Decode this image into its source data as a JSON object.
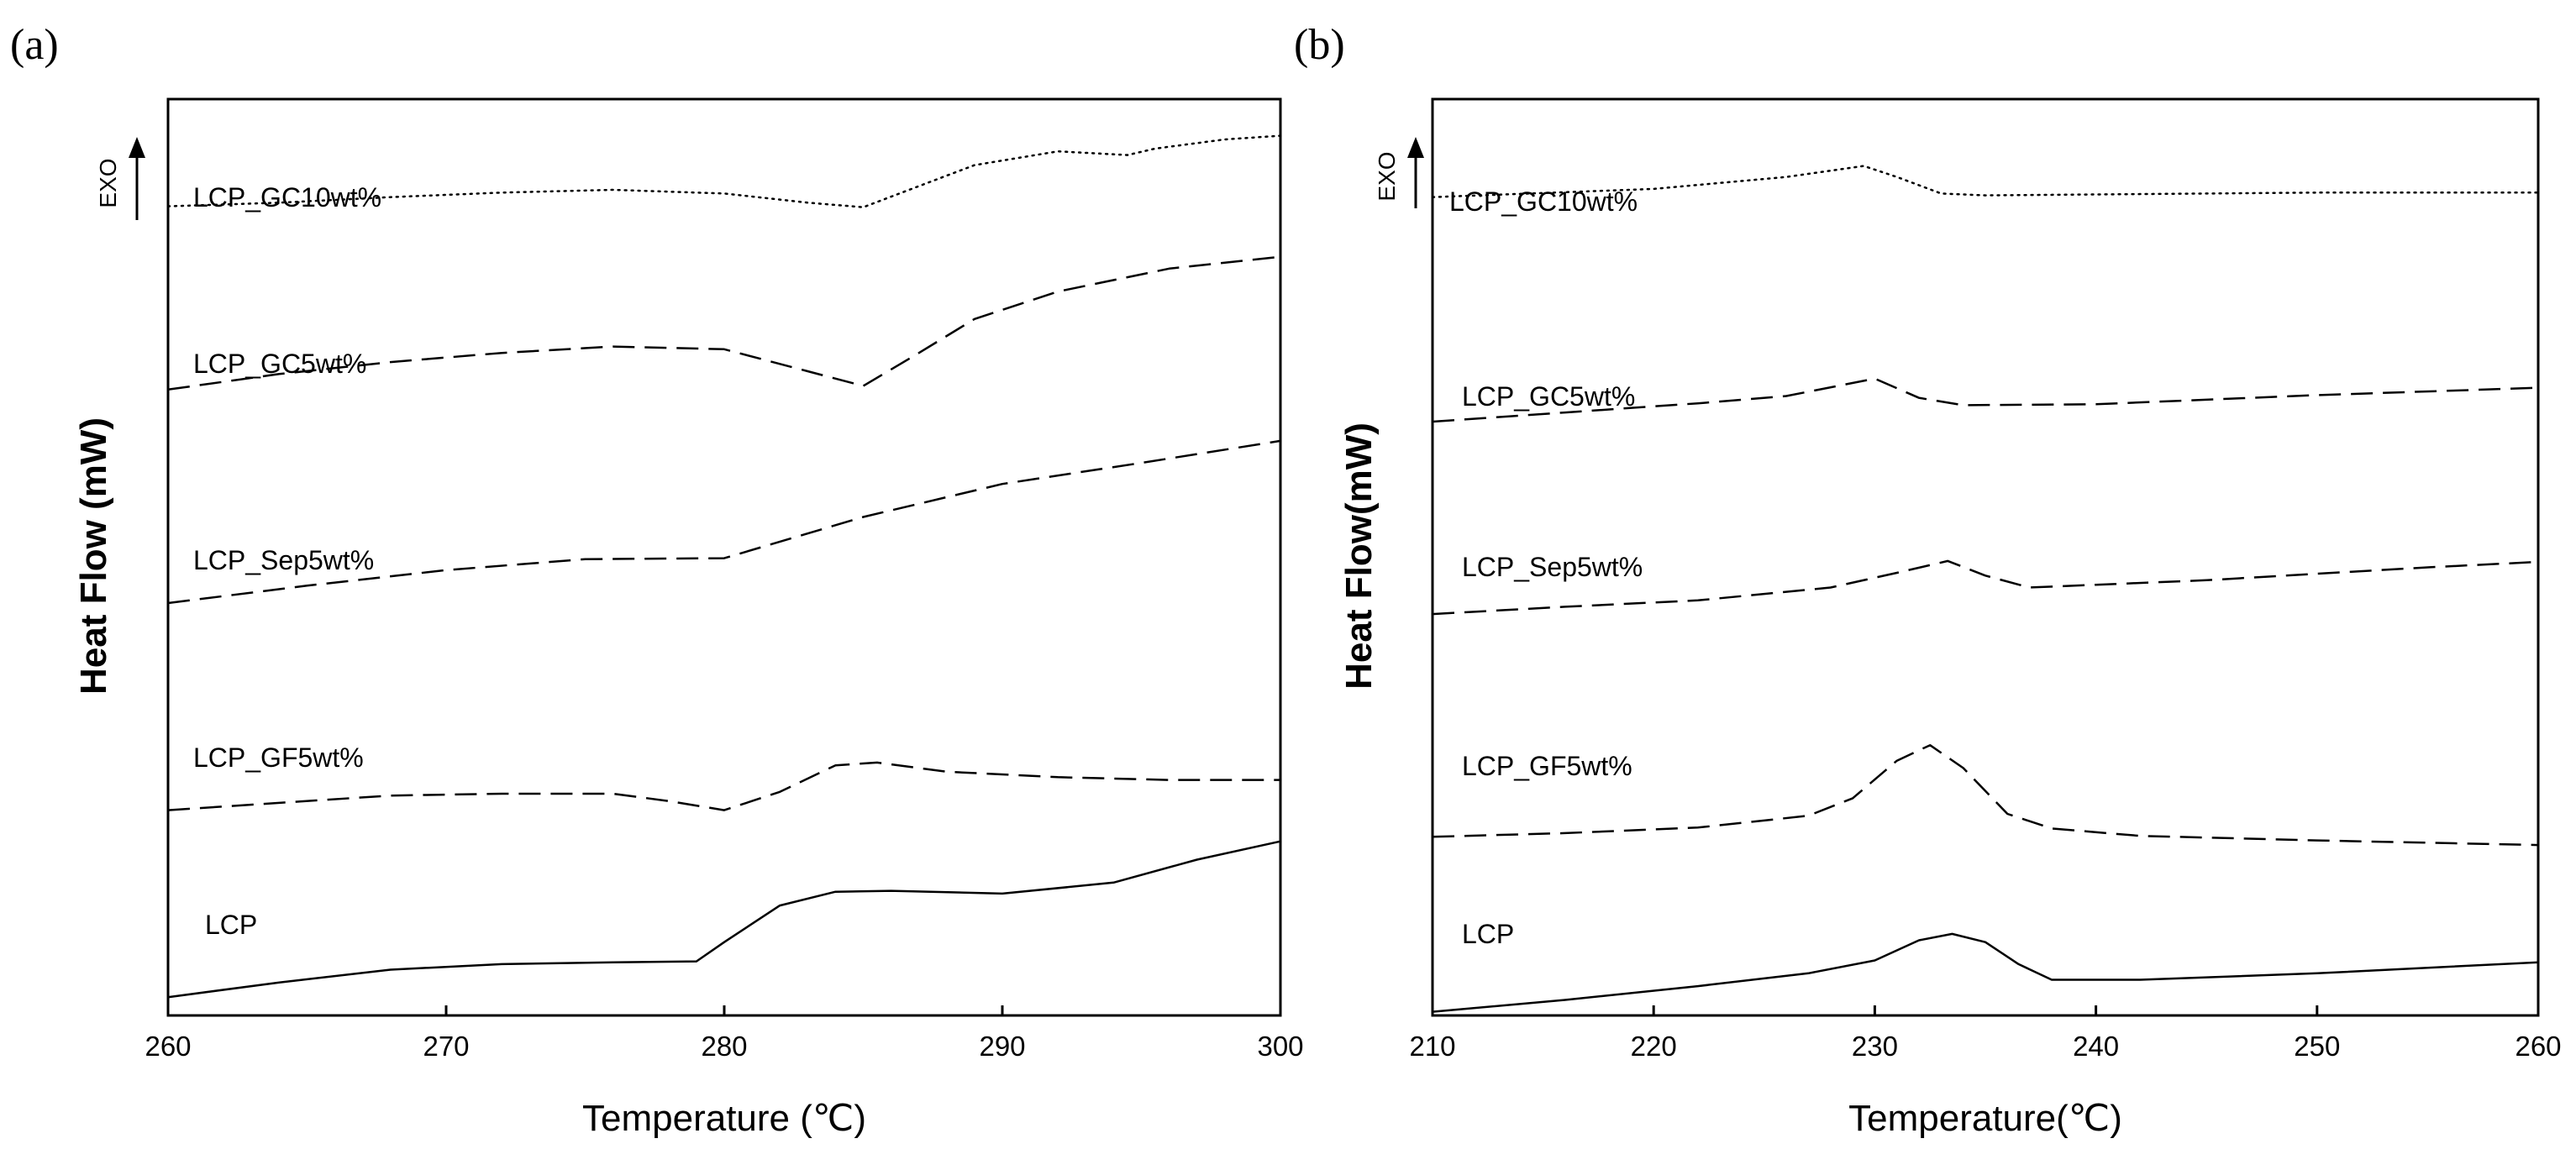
{
  "chart_data": [
    {
      "panel": "(a)",
      "type": "line",
      "xlabel": "Temperature (℃)",
      "ylabel": "Heat Flow (mW)",
      "exo_label": "EXO",
      "xlim": [
        260,
        300
      ],
      "ylim": [
        0,
        100
      ],
      "ticks": [
        260,
        270,
        280,
        290,
        300
      ],
      "series": [
        {
          "name": "LCP_GC10wt%",
          "style": "dotted",
          "x": [
            260,
            264,
            268,
            272,
            276,
            280,
            283,
            285,
            287,
            289,
            292,
            294.5,
            295.5,
            298,
            300
          ],
          "y": [
            88.3,
            88.7,
            89.3,
            89.8,
            90.1,
            89.7,
            88.7,
            88.2,
            90.5,
            92.8,
            94.3,
            93.9,
            94.6,
            95.6,
            96.0
          ]
        },
        {
          "name": "LCP_GC5wt%",
          "style": "dashed",
          "x": [
            260,
            264,
            268,
            272,
            276,
            280,
            283,
            285,
            287,
            289,
            292,
            296,
            300
          ],
          "y": [
            68.3,
            70.0,
            71.3,
            72.3,
            73.0,
            72.7,
            70.3,
            68.7,
            72.3,
            76.0,
            79.0,
            81.5,
            82.8
          ]
        },
        {
          "name": "LCP_Sep5wt%",
          "style": "dashed",
          "x": [
            260,
            265,
            270,
            275,
            280,
            285,
            290,
            295,
            300
          ],
          "y": [
            45.0,
            46.9,
            48.6,
            49.8,
            49.9,
            54.4,
            58.0,
            60.3,
            62.7
          ]
        },
        {
          "name": "LCP_GF5wt%",
          "style": "dashed",
          "x": [
            260,
            264,
            268,
            272,
            276,
            278,
            280,
            282,
            284,
            285.5,
            288,
            292,
            296,
            300
          ],
          "y": [
            22.4,
            23.2,
            24.0,
            24.2,
            24.2,
            23.4,
            22.4,
            24.4,
            27.3,
            27.6,
            26.6,
            26.0,
            25.7,
            25.7
          ]
        },
        {
          "name": "LCP",
          "style": "solid",
          "x": [
            260,
            264,
            268,
            272,
            276,
            279,
            280,
            282,
            284,
            286,
            290,
            294,
            297,
            300
          ],
          "y": [
            2.0,
            3.6,
            5.0,
            5.6,
            5.8,
            5.9,
            8.0,
            12.0,
            13.5,
            13.6,
            13.3,
            14.5,
            17.0,
            19.0
          ]
        }
      ]
    },
    {
      "panel": "(b)",
      "type": "line",
      "xlabel": "Temperature(℃)",
      "ylabel": "Heat Flow(mW)",
      "exo_label": "EXO",
      "xlim": [
        210,
        260
      ],
      "ylim": [
        0,
        100
      ],
      "ticks": [
        210,
        220,
        230,
        240,
        250,
        260
      ],
      "series": [
        {
          "name": "LCP_GC10wt%",
          "style": "dotted",
          "x": [
            210,
            220,
            226,
            229.5,
            231,
            233,
            235,
            240,
            250,
            260
          ],
          "y": [
            89.3,
            90.2,
            91.5,
            92.7,
            91.5,
            89.7,
            89.5,
            89.6,
            89.8,
            89.8
          ]
        },
        {
          "name": "LCP_GC5wt%",
          "style": "dashed",
          "x": [
            210,
            216,
            222,
            226,
            230,
            232,
            234,
            240,
            250,
            260
          ],
          "y": [
            64.8,
            65.8,
            66.8,
            67.6,
            69.5,
            67.4,
            66.6,
            66.7,
            67.7,
            68.5
          ]
        },
        {
          "name": "LCP_Sep5wt%",
          "style": "dashed",
          "x": [
            210,
            216,
            222,
            228,
            231,
            233.3,
            235,
            237,
            240,
            245,
            250,
            255,
            260
          ],
          "y": [
            43.8,
            44.6,
            45.3,
            46.7,
            48.3,
            49.6,
            48.0,
            46.7,
            47.0,
            47.5,
            48.2,
            48.9,
            49.5
          ]
        },
        {
          "name": "LCP_GF5wt%",
          "style": "dashed",
          "x": [
            210,
            216,
            222,
            227,
            229,
            231,
            232.5,
            234,
            236,
            238,
            242,
            250,
            260
          ],
          "y": [
            19.5,
            19.9,
            20.5,
            21.8,
            23.7,
            27.8,
            29.5,
            27.0,
            22.0,
            20.4,
            19.6,
            19.1,
            18.6
          ]
        },
        {
          "name": "LCP",
          "style": "solid",
          "x": [
            210,
            216,
            222,
            227,
            230,
            232,
            233.5,
            235,
            236.5,
            238,
            242,
            250,
            260
          ],
          "y": [
            0.4,
            1.7,
            3.2,
            4.6,
            6.0,
            8.2,
            8.9,
            8.0,
            5.6,
            3.9,
            3.9,
            4.6,
            5.8
          ]
        }
      ]
    }
  ]
}
